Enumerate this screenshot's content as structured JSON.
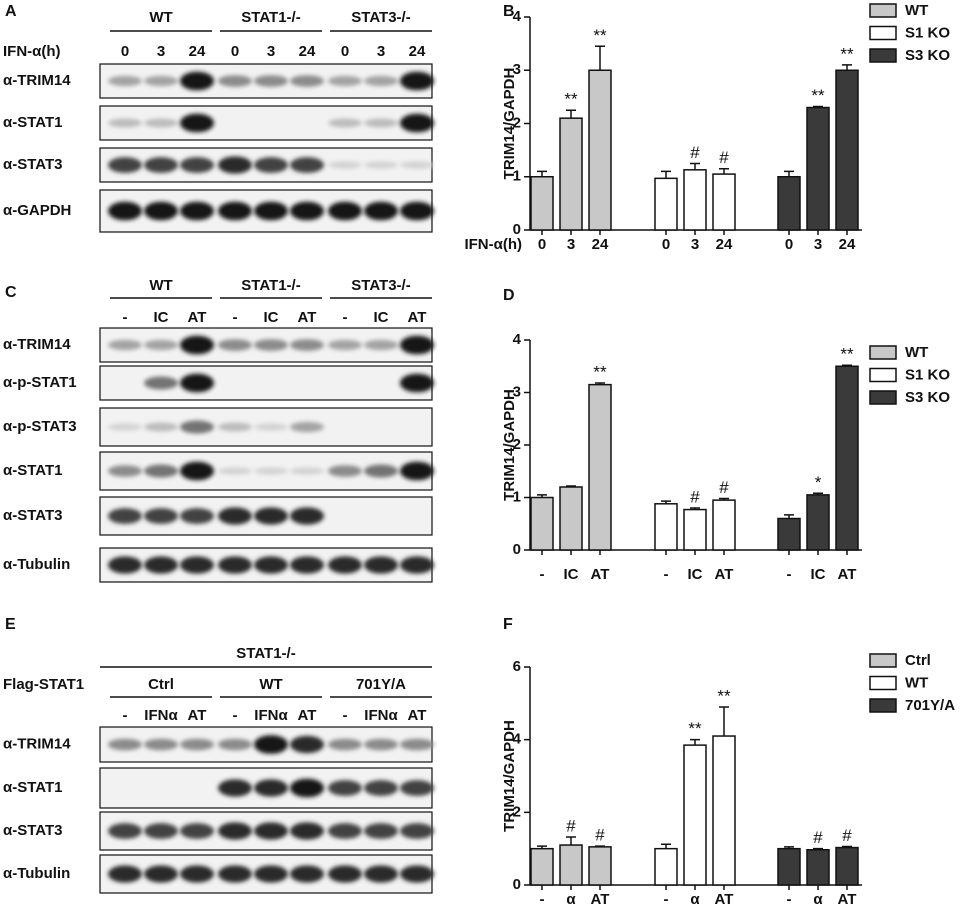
{
  "blots": [
    {
      "label": "A",
      "header": "IFN-α(h)",
      "groups": [
        "WT",
        "STAT1-/-",
        "STAT3-/-"
      ],
      "lanes": [
        "0",
        "3",
        "24"
      ],
      "rows": [
        "α-TRIM14",
        "α-STAT1",
        "α-STAT3",
        "α-GAPDH"
      ]
    },
    {
      "label": "C",
      "groups": [
        "WT",
        "STAT1-/-",
        "STAT3-/-"
      ],
      "lanes": [
        "-",
        "IC",
        "AT"
      ],
      "rows": [
        "α-TRIM14",
        "α-p-STAT1",
        "α-p-STAT3",
        "α-STAT1",
        "α-STAT3",
        "α-Tubulin"
      ]
    },
    {
      "label": "E",
      "title": "STAT1-/-",
      "header": "Flag-STAT1",
      "groups": [
        "Ctrl",
        "WT",
        "701Y/A"
      ],
      "lanes": [
        "-",
        "IFNα",
        "AT"
      ],
      "rows": [
        "α-TRIM14",
        "α-STAT1",
        "α-STAT3",
        "α-Tubulin"
      ]
    }
  ],
  "chart_data": [
    {
      "type": "bar",
      "label": "B",
      "ylabel": "TRIM14/GAPDH",
      "xlabel": "IFN-α(h)",
      "categories": [
        "0",
        "3",
        "24"
      ],
      "ylim": [
        0,
        4
      ],
      "yticks": [
        0,
        1,
        2,
        3,
        4
      ],
      "legend": "top-right",
      "series": [
        {
          "name": "WT",
          "color": "#c8c8c8",
          "values": [
            1.0,
            2.1,
            3.0
          ],
          "errors": [
            0.1,
            0.15,
            0.45
          ],
          "annotations": [
            null,
            "**",
            "**"
          ]
        },
        {
          "name": "S1 KO",
          "color": "#ffffff",
          "values": [
            0.97,
            1.13,
            1.05
          ],
          "errors": [
            0.13,
            0.12,
            0.1
          ],
          "annotations": [
            null,
            "#",
            "#"
          ]
        },
        {
          "name": "S3 KO",
          "color": "#3a3a3a",
          "values": [
            1.0,
            2.3,
            3.0
          ],
          "errors": [
            0.1,
            0.02,
            0.1
          ],
          "annotations": [
            null,
            "**",
            "**"
          ]
        }
      ]
    },
    {
      "type": "bar",
      "label": "D",
      "ylabel": "TRIM14/GAPDH",
      "categories": [
        "-",
        "IC",
        "AT"
      ],
      "ylim": [
        0,
        4
      ],
      "yticks": [
        0,
        1,
        2,
        3,
        4
      ],
      "legend": "top-right",
      "series": [
        {
          "name": "WT",
          "color": "#c8c8c8",
          "values": [
            1.0,
            1.2,
            3.15
          ],
          "errors": [
            0.05,
            0.02,
            0.03
          ],
          "annotations": [
            null,
            null,
            "**"
          ]
        },
        {
          "name": "S1 KO",
          "color": "#ffffff",
          "values": [
            0.88,
            0.77,
            0.95
          ],
          "errors": [
            0.05,
            0.03,
            0.03
          ],
          "annotations": [
            null,
            "#",
            "#"
          ]
        },
        {
          "name": "S3 KO",
          "color": "#3a3a3a",
          "values": [
            0.6,
            1.05,
            3.5
          ],
          "errors": [
            0.07,
            0.03,
            0.02
          ],
          "annotations": [
            null,
            "*",
            "**"
          ]
        }
      ]
    },
    {
      "type": "bar",
      "label": "F",
      "ylabel": "TRIM14/GAPDH",
      "categories": [
        "-",
        "α",
        "AT"
      ],
      "ylim": [
        0,
        6
      ],
      "yticks": [
        0,
        2,
        4,
        6
      ],
      "legend": "top-right",
      "series": [
        {
          "name": "Ctrl",
          "color": "#c8c8c8",
          "values": [
            1.0,
            1.1,
            1.05
          ],
          "errors": [
            0.07,
            0.22,
            0.02
          ],
          "annotations": [
            null,
            "#",
            "#"
          ]
        },
        {
          "name": "WT",
          "color": "#ffffff",
          "values": [
            1.0,
            3.85,
            4.1
          ],
          "errors": [
            0.12,
            0.15,
            0.8
          ],
          "annotations": [
            null,
            "**",
            "**"
          ]
        },
        {
          "name": "701Y/A",
          "color": "#3a3a3a",
          "values": [
            1.0,
            0.97,
            1.03
          ],
          "errors": [
            0.05,
            0.03,
            0.03
          ],
          "annotations": [
            null,
            "#",
            "#"
          ]
        }
      ]
    }
  ]
}
